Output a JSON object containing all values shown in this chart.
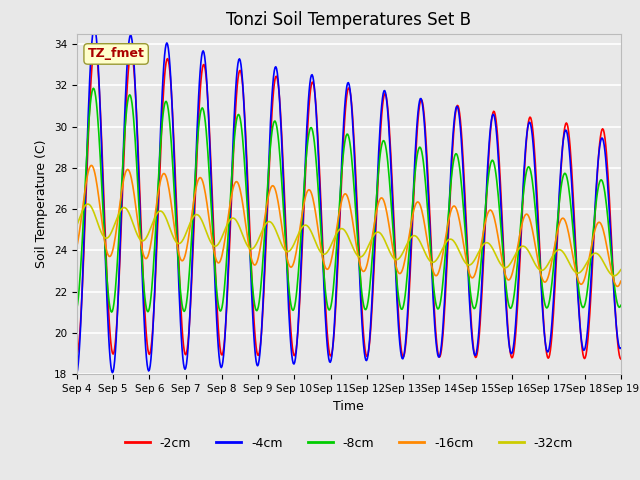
{
  "title": "Tonzi Soil Temperatures Set B",
  "xlabel": "Time",
  "ylabel": "Soil Temperature (C)",
  "ylim": [
    18,
    34.5
  ],
  "series": [
    {
      "label": "-2cm",
      "color": "#ff0000"
    },
    {
      "label": "-4cm",
      "color": "#0000ff"
    },
    {
      "label": "-8cm",
      "color": "#00cc00"
    },
    {
      "label": "-16cm",
      "color": "#ff8800"
    },
    {
      "label": "-32cm",
      "color": "#cccc00"
    }
  ],
  "xtick_labels": [
    "Sep 4",
    "Sep 5",
    "Sep 6",
    "Sep 7",
    "Sep 8",
    "Sep 9",
    "Sep 10",
    "Sep 11",
    "Sep 12",
    "Sep 13",
    "Sep 14",
    "Sep 15",
    "Sep 16",
    "Sep 17",
    "Sep 18",
    "Sep 19"
  ],
  "annotation_text": "TZ_fmet",
  "annotation_color": "#aa0000",
  "annotation_bg": "#ffffcc",
  "plot_bg_color": "#e8e8e8",
  "fig_bg_color": "#e8e8e8",
  "grid_color": "#ffffff",
  "title_fontsize": 12,
  "axis_label_fontsize": 9,
  "tick_fontsize": 7.5,
  "legend_fontsize": 9,
  "linewidth": 1.2
}
